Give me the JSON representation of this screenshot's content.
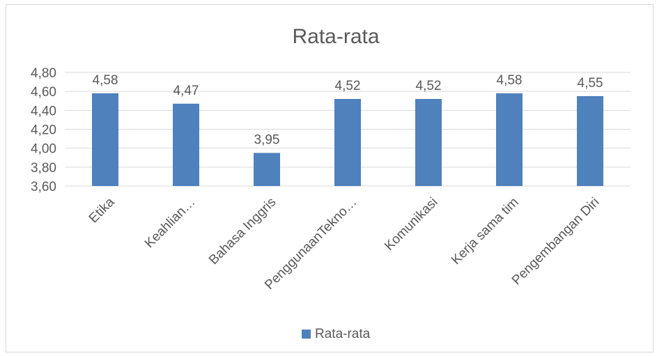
{
  "chart_data": {
    "type": "bar",
    "title": "Rata-rata",
    "categories": [
      "Etika",
      "Keahlian…",
      "Bahasa Inggris",
      "PenggunaanTekno…",
      "Komunikasi",
      "Kerja sama tim",
      "Pengembangan Diri"
    ],
    "series": [
      {
        "name": "Rata-rata",
        "values": [
          4.58,
          4.47,
          3.95,
          4.52,
          4.52,
          4.58,
          4.55
        ]
      }
    ],
    "data_labels": [
      "4,58",
      "4,47",
      "3,95",
      "4,52",
      "4,52",
      "4,58",
      "4,55"
    ],
    "ylim": [
      3.6,
      4.8
    ],
    "yticks": [
      3.6,
      3.8,
      4.0,
      4.2,
      4.4,
      4.6,
      4.8
    ],
    "ytick_labels": [
      "3,60",
      "3,80",
      "4,00",
      "4,20",
      "4,40",
      "4,60",
      "4,80"
    ],
    "grid": true,
    "legend_position": "bottom",
    "bar_color": "#4f81bd",
    "grid_color": "#d9d9d9",
    "text_color": "#595959"
  }
}
